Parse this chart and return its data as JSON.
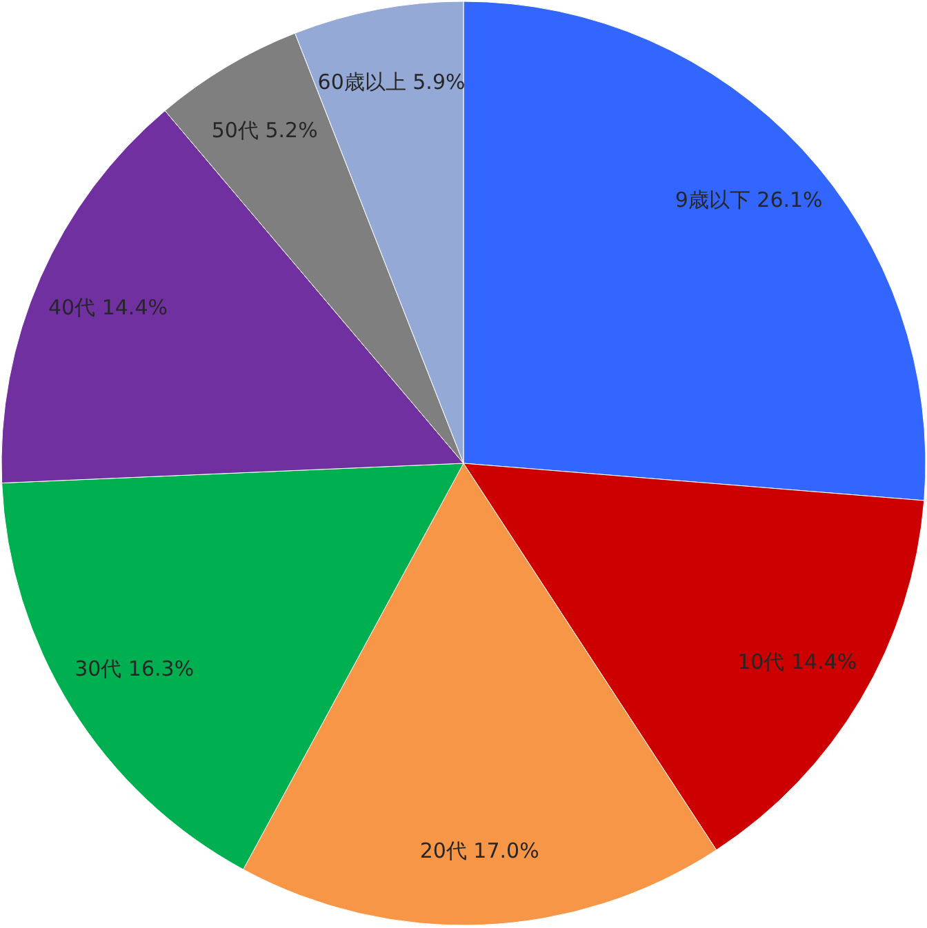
{
  "chart_data": {
    "type": "pie",
    "categories": [
      "9歳以下",
      "10代",
      "20代",
      "30代",
      "40代",
      "50代",
      "60歳以上"
    ],
    "values": [
      26.1,
      14.4,
      17.0,
      16.3,
      14.4,
      5.2,
      5.9
    ],
    "value_labels": [
      "26.1%",
      "14.4%",
      "17.0%",
      "16.3%",
      "14.4%",
      "5.2%",
      "5.9%"
    ],
    "colors": [
      "#3366ff",
      "#cc0000",
      "#f79646",
      "#00b050",
      "#7030a0",
      "#7f7f7f",
      "#95a9d6"
    ],
    "legend": false
  }
}
